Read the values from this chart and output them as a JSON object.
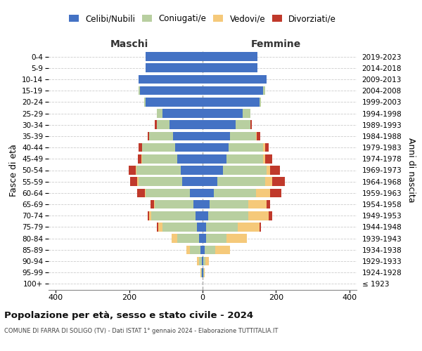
{
  "age_groups": [
    "100+",
    "95-99",
    "90-94",
    "85-89",
    "80-84",
    "75-79",
    "70-74",
    "65-69",
    "60-64",
    "55-59",
    "50-54",
    "45-49",
    "40-44",
    "35-39",
    "30-34",
    "25-29",
    "20-24",
    "15-19",
    "10-14",
    "5-9",
    "0-4"
  ],
  "birth_years": [
    "≤ 1923",
    "1924-1928",
    "1929-1933",
    "1934-1938",
    "1939-1943",
    "1944-1948",
    "1949-1953",
    "1954-1958",
    "1959-1963",
    "1964-1968",
    "1969-1973",
    "1974-1978",
    "1979-1983",
    "1984-1988",
    "1989-1993",
    "1994-1998",
    "1999-2003",
    "2004-2008",
    "2009-2013",
    "2014-2018",
    "2019-2023"
  ],
  "males_celibi": [
    0,
    1,
    2,
    5,
    10,
    15,
    20,
    25,
    35,
    55,
    60,
    70,
    75,
    80,
    90,
    110,
    155,
    170,
    175,
    155,
    155
  ],
  "males_coniugati": [
    0,
    3,
    8,
    30,
    60,
    95,
    120,
    105,
    120,
    120,
    120,
    95,
    90,
    65,
    35,
    15,
    5,
    5,
    0,
    0,
    0
  ],
  "males_vedovi": [
    0,
    2,
    5,
    10,
    15,
    10,
    5,
    2,
    3,
    3,
    2,
    2,
    0,
    0,
    0,
    0,
    0,
    0,
    0,
    0,
    0
  ],
  "males_divorziati": [
    0,
    0,
    0,
    0,
    0,
    5,
    5,
    10,
    20,
    20,
    20,
    10,
    10,
    5,
    5,
    0,
    0,
    0,
    0,
    0,
    0
  ],
  "females_nubili": [
    0,
    1,
    2,
    5,
    10,
    10,
    15,
    20,
    30,
    40,
    55,
    65,
    70,
    75,
    90,
    110,
    155,
    165,
    175,
    150,
    150
  ],
  "females_coniugate": [
    0,
    2,
    5,
    30,
    55,
    85,
    110,
    105,
    115,
    130,
    120,
    100,
    95,
    70,
    40,
    20,
    5,
    5,
    0,
    0,
    0
  ],
  "females_vedove": [
    0,
    3,
    10,
    40,
    55,
    60,
    55,
    50,
    40,
    20,
    10,
    5,
    5,
    3,
    0,
    0,
    0,
    0,
    0,
    0,
    0
  ],
  "females_divorziate": [
    0,
    0,
    0,
    0,
    0,
    5,
    10,
    10,
    30,
    35,
    25,
    20,
    10,
    10,
    5,
    0,
    0,
    0,
    0,
    0,
    0
  ],
  "color_celibi": "#4472c4",
  "color_coniugati": "#b8cfa0",
  "color_vedovi": "#f5c97a",
  "color_divorziati": "#c0392b",
  "title": "Popolazione per età, sesso e stato civile - 2024",
  "subtitle": "COMUNE DI FARRA DI SOLIGO (TV) - Dati ISTAT 1° gennaio 2024 - Elaborazione TUTTITALIA.IT",
  "ylabel_left": "Fasce di età",
  "ylabel_right": "Anni di nascita",
  "xlim": 420,
  "legend_labels": [
    "Celibi/Nubili",
    "Coniugati/e",
    "Vedovi/e",
    "Divorziati/e"
  ],
  "label_maschi": "Maschi",
  "label_femmine": "Femmine",
  "bg_color": "#ffffff"
}
